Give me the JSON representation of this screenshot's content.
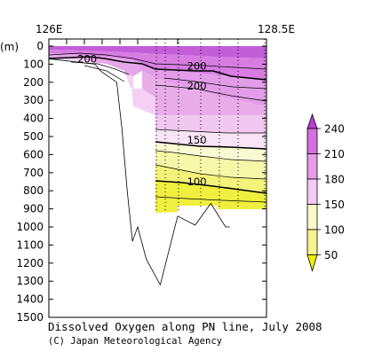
{
  "chart_data": {
    "type": "heatmap",
    "title": "Dissolved Oxygen along PN line, July 2008",
    "credit": "(C) Japan Meteorological Agency",
    "xlabel": "",
    "ylabel": "(m)",
    "x_tick_labels": [
      "126E",
      "128.5E"
    ],
    "xlim": [
      126.0,
      128.5
    ],
    "ylim": [
      1500,
      0
    ],
    "y_ticks": [
      0,
      100,
      200,
      300,
      400,
      500,
      600,
      700,
      800,
      900,
      1000,
      1100,
      1200,
      1300,
      1400,
      1500
    ],
    "colorbar": {
      "boundaries": [
        50,
        100,
        150,
        180,
        210,
        240
      ],
      "labels": [
        "50",
        "100",
        "150",
        "180",
        "210",
        "240"
      ],
      "colors": [
        "#f0f000",
        "#f5f590",
        "#f8f8c8",
        "#f6c8f4",
        "#e69ce8",
        "#d36fe0",
        "#b93fd4"
      ]
    },
    "contour_labels": [
      {
        "level": 200,
        "text": "200",
        "lon": 126.44,
        "depth": 80
      },
      {
        "level": 200,
        "text": "200",
        "lon": 127.7,
        "depth": 120
      },
      {
        "level": 200,
        "text": "200",
        "lon": 127.7,
        "depth": 230
      },
      {
        "level": 150,
        "text": "150",
        "lon": 127.7,
        "depth": 530
      },
      {
        "level": 100,
        "text": "100",
        "lon": 127.7,
        "depth": 760
      }
    ],
    "bottom_topography": [
      [
        126.0,
        70
      ],
      [
        126.53,
        100
      ],
      [
        126.6,
        140
      ],
      [
        126.78,
        200
      ],
      [
        126.84,
        460
      ],
      [
        126.9,
        800
      ],
      [
        126.96,
        1080
      ],
      [
        127.02,
        1000
      ],
      [
        127.12,
        1180
      ],
      [
        127.28,
        1320
      ],
      [
        127.48,
        940
      ],
      [
        127.68,
        990
      ],
      [
        127.86,
        870
      ],
      [
        128.03,
        1000
      ],
      [
        128.08,
        1000
      ]
    ]
  }
}
